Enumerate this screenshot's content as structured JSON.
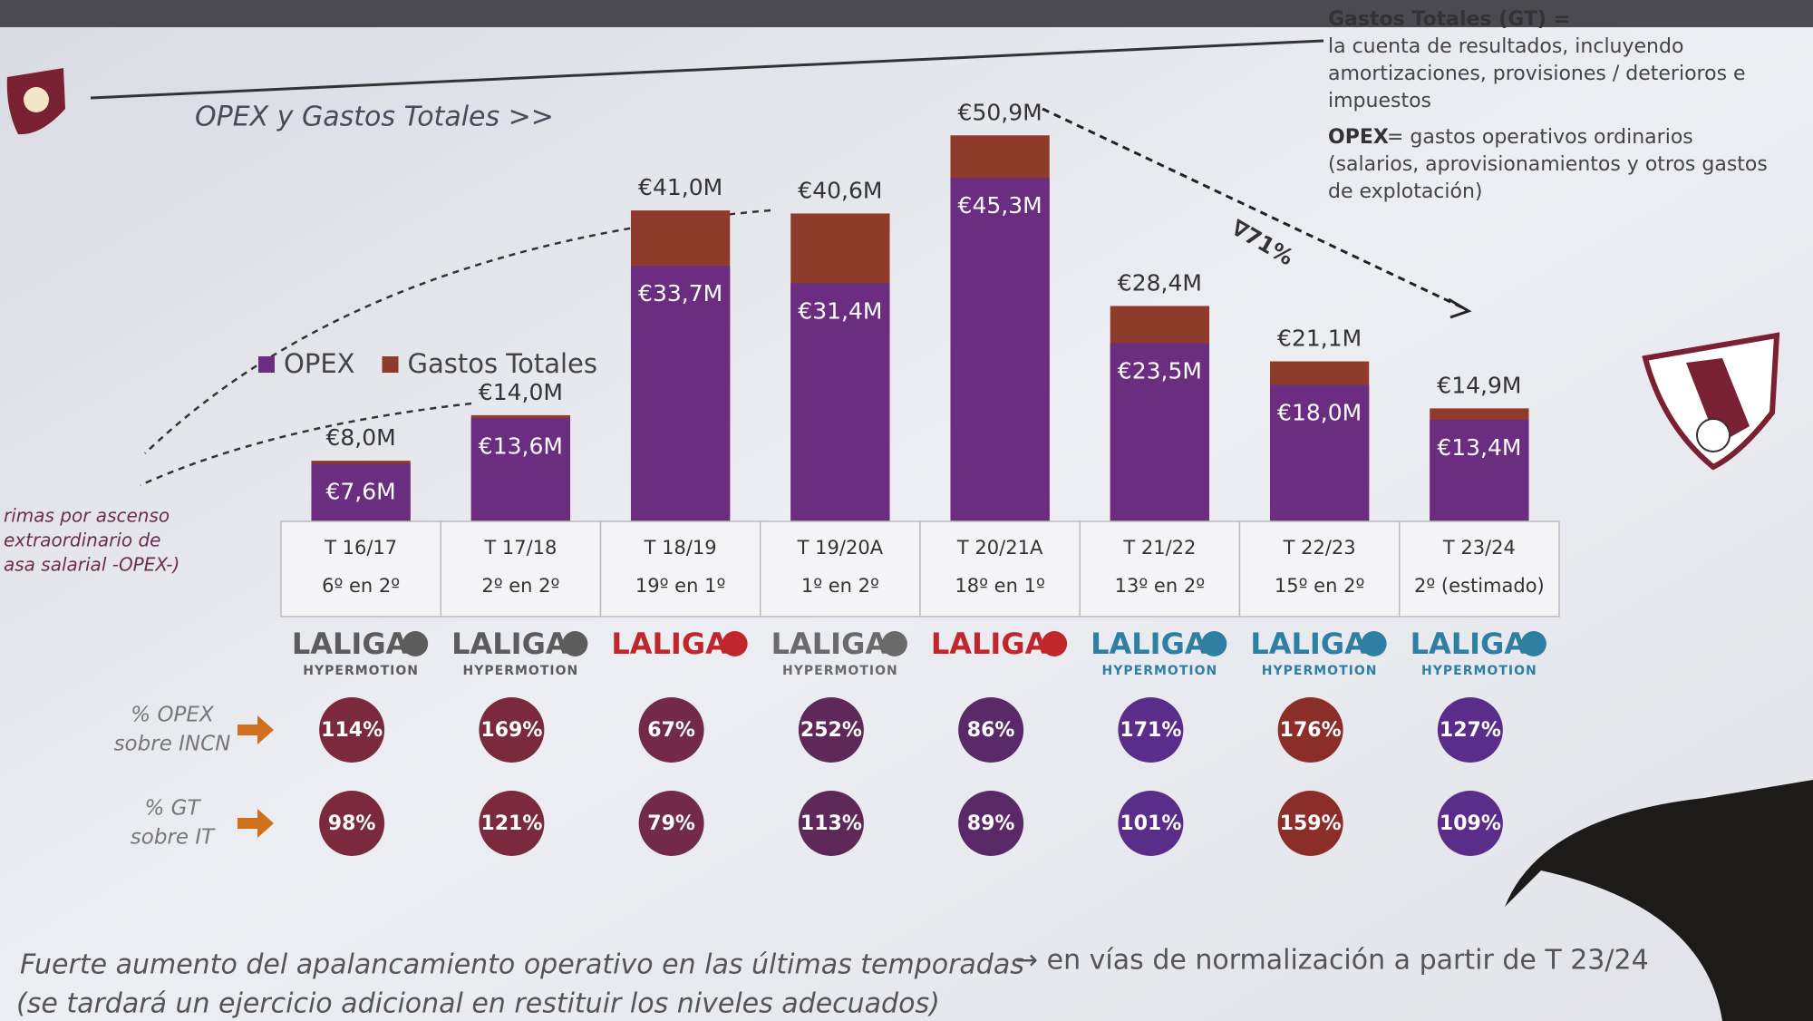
{
  "chart_data": {
    "type": "bar",
    "title": "OPEX y Gastos Totales >>",
    "categories": [
      "T 16/17",
      "T 17/18",
      "T 18/19",
      "T 19/20A",
      "T 20/21A",
      "T 21/22",
      "T 22/23",
      "T 23/24"
    ],
    "positions": [
      "6º en 2º",
      "2º en 2º",
      "19º en 1º",
      "1º en 2º",
      "18º en 1º",
      "13º en 2º",
      "15º en 2º",
      "2º (estimado)"
    ],
    "leagues": [
      {
        "name": "LALIGA",
        "sub": "HYPERMOTION",
        "color": "#5c5c5c"
      },
      {
        "name": "LALIGA",
        "sub": "HYPERMOTION",
        "color": "#5c5c5c"
      },
      {
        "name": "LALIGA",
        "color": "#c0272d"
      },
      {
        "name": "LALIGA",
        "sub": "HYPERMOTION",
        "color": "#6a6a6a"
      },
      {
        "name": "LALIGA",
        "color": "#c0272d"
      },
      {
        "name": "LALIGA",
        "sub": "HYPERMOTION",
        "color": "#2f7fa3"
      },
      {
        "name": "LALIGA",
        "sub": "HYPERMOTION",
        "color": "#2f7fa3"
      },
      {
        "name": "LALIGA",
        "sub": "HYPERMOTION",
        "color": "#2f7fa3"
      }
    ],
    "series": [
      {
        "name": "Gastos Totales",
        "color": "#8e3b2c",
        "values": [
          8.0,
          14.0,
          41.0,
          40.6,
          50.9,
          28.4,
          21.1,
          14.9
        ],
        "value_labels": [
          "€8,0M",
          "€14,0M",
          "€41,0M",
          "€40,6M",
          "€50,9M",
          "€28,4M",
          "€21,1M",
          "€14,9M"
        ]
      },
      {
        "name": "OPEX",
        "color": "#6b2d80",
        "values": [
          7.6,
          13.6,
          33.7,
          31.4,
          45.3,
          23.5,
          18.0,
          13.4
        ],
        "value_labels": [
          "€7,6M",
          "€13,6M",
          "€33,7M",
          "€31,4M",
          "€45,3M",
          "€23,5M",
          "€18,0M",
          "€13,4M"
        ]
      }
    ],
    "ylim": [
      0,
      55
    ],
    "rates": [
      {
        "name_lines": [
          "% OPEX",
          "sobre INCN"
        ],
        "values": [
          114,
          169,
          67,
          252,
          86,
          171,
          176,
          127
        ],
        "value_labels": [
          "114%",
          "169%",
          "67%",
          "252%",
          "86%",
          "171%",
          "176%",
          "127%"
        ],
        "colors": [
          "#7a2a3c",
          "#7a2a3c",
          "#72294a",
          "#5e2958",
          "#5a2a68",
          "#5b2d8a",
          "#8b2e2a",
          "#5b2d8a"
        ]
      },
      {
        "name_lines": [
          "% GT",
          "sobre IT"
        ],
        "values": [
          98,
          121,
          79,
          113,
          89,
          101,
          159,
          109
        ],
        "value_labels": [
          "98%",
          "121%",
          "79%",
          "113%",
          "89%",
          "101%",
          "159%",
          "109%"
        ],
        "colors": [
          "#7a2a3c",
          "#7a2a3c",
          "#72294a",
          "#5e2958",
          "#5a2a68",
          "#5b2d8a",
          "#8b2e2a",
          "#5b2d8a"
        ]
      }
    ],
    "drop_annotation": "∇71%",
    "notes": [
      {
        "term": "Gastos Totales (GT) =",
        "lines": [
          "la cuenta de resultados, incluyendo",
          "amortizaciones, provisiones / deterioros e",
          "impuestos"
        ]
      },
      {
        "term": "OPEX",
        "lines": [
          " = gastos operativos ordinarios",
          "(salarios, aprovisionamientos y otros gastos",
          "de explotación)"
        ]
      }
    ],
    "side_note": [
      "rimas por ascenso",
      "extraordinario de",
      "asa salarial -OPEX-)"
    ],
    "footer": [
      "Fuerte aumento del apalancamiento operativo en las últimas temporadas",
      "→ en vías de normalización a partir de T 23/24",
      "(se tardará un ejercicio adicional en restituir los niveles adecuados)"
    ]
  }
}
